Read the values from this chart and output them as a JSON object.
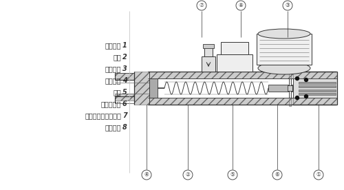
{
  "bg_color": "#ffffff",
  "line_color": "#333333",
  "labels": [
    [
      "1",
      "同轴弹塑"
    ],
    [
      "2",
      "弹簧"
    ],
    [
      "3",
      "微动开关"
    ],
    [
      "4",
      "断路螺母"
    ],
    [
      "5",
      "主杆"
    ],
    [
      "6",
      "开关扩张器"
    ],
    [
      "7",
      "断路螺母固定螺母弹"
    ],
    [
      "8",
      "电接头关"
    ]
  ],
  "bottom_callouts": [
    [
      "④",
      213
    ],
    [
      "②",
      273
    ],
    [
      "⑤",
      338
    ],
    [
      "⑥",
      403
    ],
    [
      "①",
      463
    ]
  ],
  "top_callouts": [
    [
      "⑦",
      293
    ],
    [
      "⑧",
      350
    ],
    [
      "③",
      418
    ]
  ]
}
